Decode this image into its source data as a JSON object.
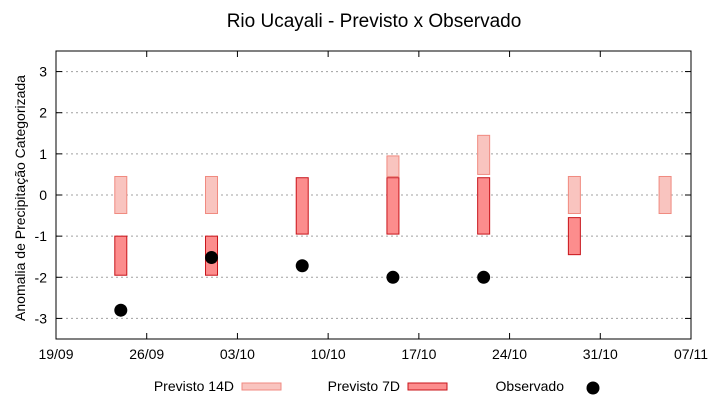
{
  "chart_data": {
    "type": "range-bar-scatter",
    "title": "Rio Ucayali - Previsto x Observado",
    "xlabel": "",
    "ylabel": "Anomalia de Precipitação Categorizada",
    "ylim": [
      -3.5,
      3.5
    ],
    "yticks": [
      3,
      2,
      1,
      0,
      -1,
      -2,
      -3
    ],
    "ytick_labels": [
      "3",
      "2",
      "1",
      "0",
      "-1",
      "-2",
      "-3"
    ],
    "xlim_days": [
      0,
      49
    ],
    "xticks": [
      {
        "day": 0,
        "label": "19/09"
      },
      {
        "day": 7,
        "label": "26/09"
      },
      {
        "day": 14,
        "label": "03/10"
      },
      {
        "day": 21,
        "label": "10/10"
      },
      {
        "day": 28,
        "label": "17/10"
      },
      {
        "day": 35,
        "label": "24/10"
      },
      {
        "day": 42,
        "label": "31/10"
      },
      {
        "day": 49,
        "label": "07/11"
      }
    ],
    "grid": true,
    "legend_position": "bottom",
    "series": [
      {
        "name": "Previsto 14D",
        "kind": "range",
        "color": "#f9c4bf",
        "stroke": "#f08a80",
        "points": [
          {
            "day": 5,
            "low": -0.45,
            "high": 0.45
          },
          {
            "day": 12,
            "low": -0.45,
            "high": 0.45
          },
          {
            "day": 26,
            "low": 0.45,
            "high": 0.95
          },
          {
            "day": 33,
            "low": 0.5,
            "high": 1.45
          },
          {
            "day": 40,
            "low": -0.45,
            "high": 0.45
          },
          {
            "day": 47,
            "low": -0.45,
            "high": 0.45
          }
        ]
      },
      {
        "name": "Previsto 7D",
        "kind": "range",
        "color": "#fc8d8d",
        "stroke": "#c8141a",
        "points": [
          {
            "day": 5,
            "low": -1.95,
            "high": -1.0
          },
          {
            "day": 12,
            "low": -1.95,
            "high": -1.0
          },
          {
            "day": 19,
            "low": -0.95,
            "high": 0.42
          },
          {
            "day": 26,
            "low": -0.95,
            "high": 0.42
          },
          {
            "day": 33,
            "low": -0.95,
            "high": 0.42
          },
          {
            "day": 40,
            "low": -1.45,
            "high": -0.55
          }
        ]
      },
      {
        "name": "Observado",
        "kind": "scatter",
        "color": "#000000",
        "points": [
          {
            "day": 5,
            "value": -2.8
          },
          {
            "day": 12,
            "value": -1.52
          },
          {
            "day": 19,
            "value": -1.72
          },
          {
            "day": 26,
            "value": -2.0
          },
          {
            "day": 33,
            "value": -2.0
          }
        ]
      }
    ]
  }
}
